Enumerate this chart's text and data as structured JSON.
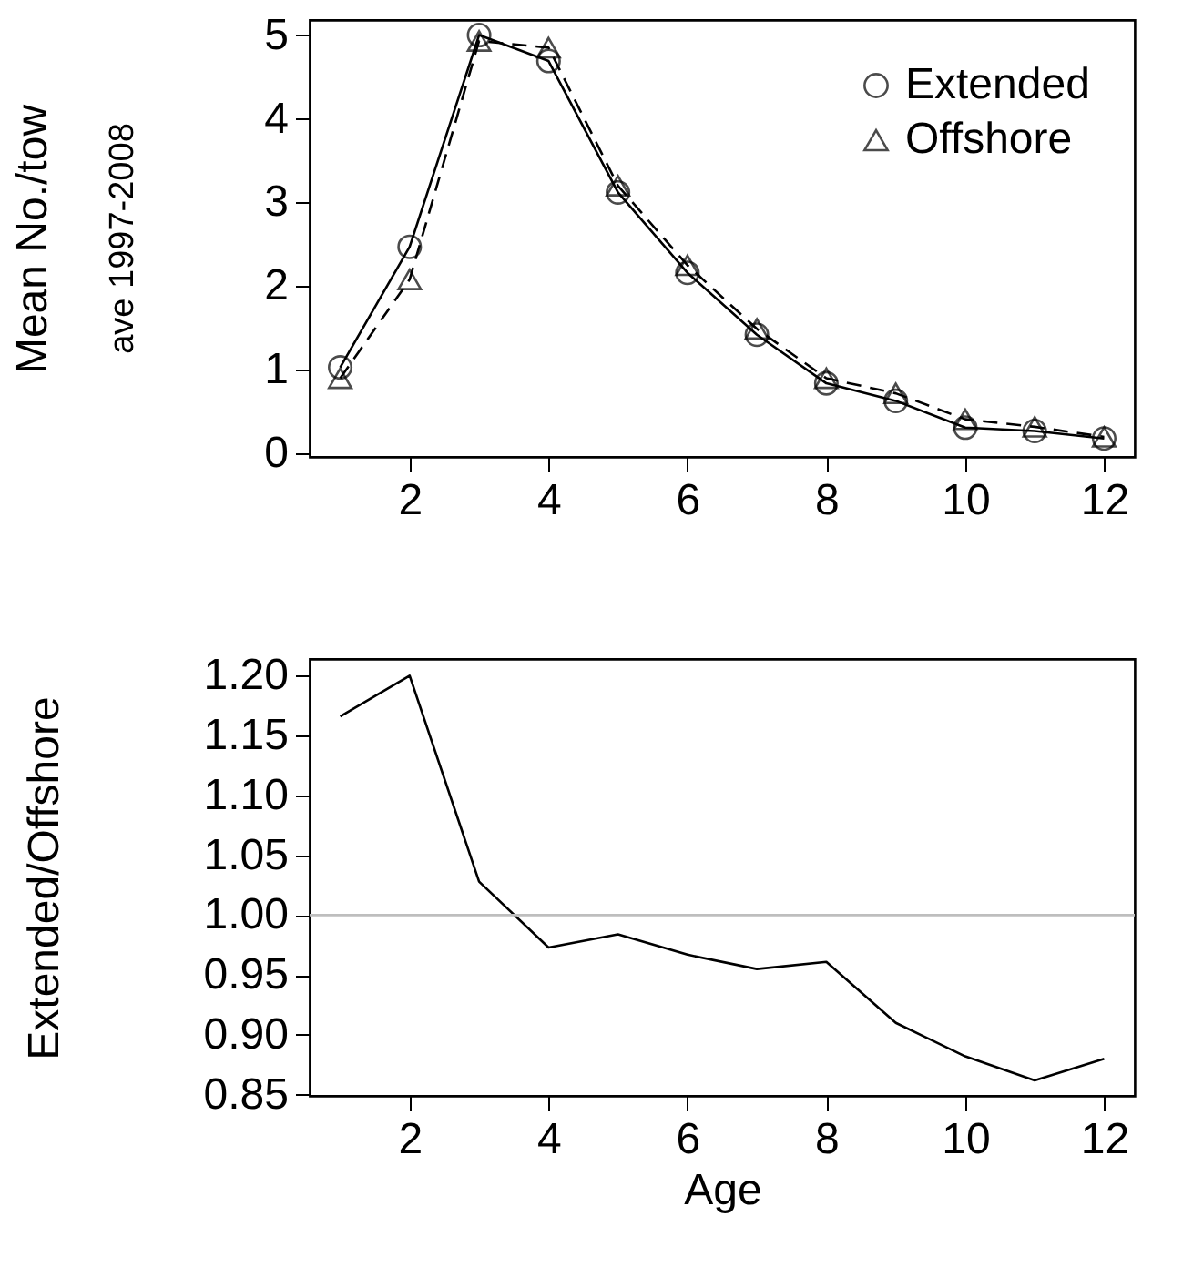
{
  "chart_data": [
    {
      "type": "line",
      "ylabel": "Mean No./tow",
      "annotations": [
        "ave 1997-2008"
      ],
      "x": [
        1,
        2,
        3,
        4,
        5,
        6,
        7,
        8,
        9,
        10,
        11,
        12
      ],
      "xlim": [
        0.56,
        12.44
      ],
      "xticks": [
        2,
        4,
        6,
        8,
        10,
        12
      ],
      "ylim": [
        -0.04,
        5.18
      ],
      "yticks": [
        0,
        1,
        2,
        3,
        4,
        5
      ],
      "legend": "top right",
      "grid": false,
      "series": [
        {
          "name": "Extended",
          "color": "#000000",
          "marker": "circle",
          "line_style": "solid",
          "values": [
            1.03,
            2.47,
            5.0,
            4.69,
            3.12,
            2.16,
            1.42,
            0.84,
            0.63,
            0.31,
            0.27,
            0.18
          ]
        },
        {
          "name": "Offshore",
          "color": "#000000",
          "marker": "triangle",
          "line_style": "dashed",
          "values": [
            0.9,
            2.08,
            4.93,
            4.85,
            3.2,
            2.25,
            1.49,
            0.9,
            0.72,
            0.41,
            0.32,
            0.2
          ]
        }
      ]
    },
    {
      "type": "line",
      "xlabel": "Age",
      "ylabel": "Extended/Offshore",
      "x": [
        1,
        2,
        3,
        4,
        5,
        6,
        7,
        8,
        9,
        10,
        11,
        12
      ],
      "xlim": [
        0.56,
        12.44
      ],
      "xticks": [
        2,
        4,
        6,
        8,
        10,
        12
      ],
      "ylim": [
        0.849,
        1.214
      ],
      "yticks": [
        {
          "value": 0.85,
          "label": "0.85"
        },
        {
          "value": 0.9,
          "label": "0.90"
        },
        {
          "value": 0.95,
          "label": "0.95"
        },
        {
          "value": 1.0,
          "label": "1.00"
        },
        {
          "value": 1.05,
          "label": "1.05"
        },
        {
          "value": 1.1,
          "label": "1.10"
        },
        {
          "value": 1.15,
          "label": "1.15"
        },
        {
          "value": 1.2,
          "label": "1.20"
        }
      ],
      "grid": false,
      "marker": "none",
      "line_style": "solid",
      "series": [
        {
          "color": "#000000",
          "values": [
            1.166,
            1.2,
            1.028,
            0.973,
            0.984,
            0.967,
            0.955,
            0.961,
            0.91,
            0.882,
            0.862,
            0.88
          ]
        }
      ],
      "ref_lines": [
        {
          "axis": "y",
          "value": 1.0,
          "color": "#bebebe"
        }
      ]
    }
  ]
}
